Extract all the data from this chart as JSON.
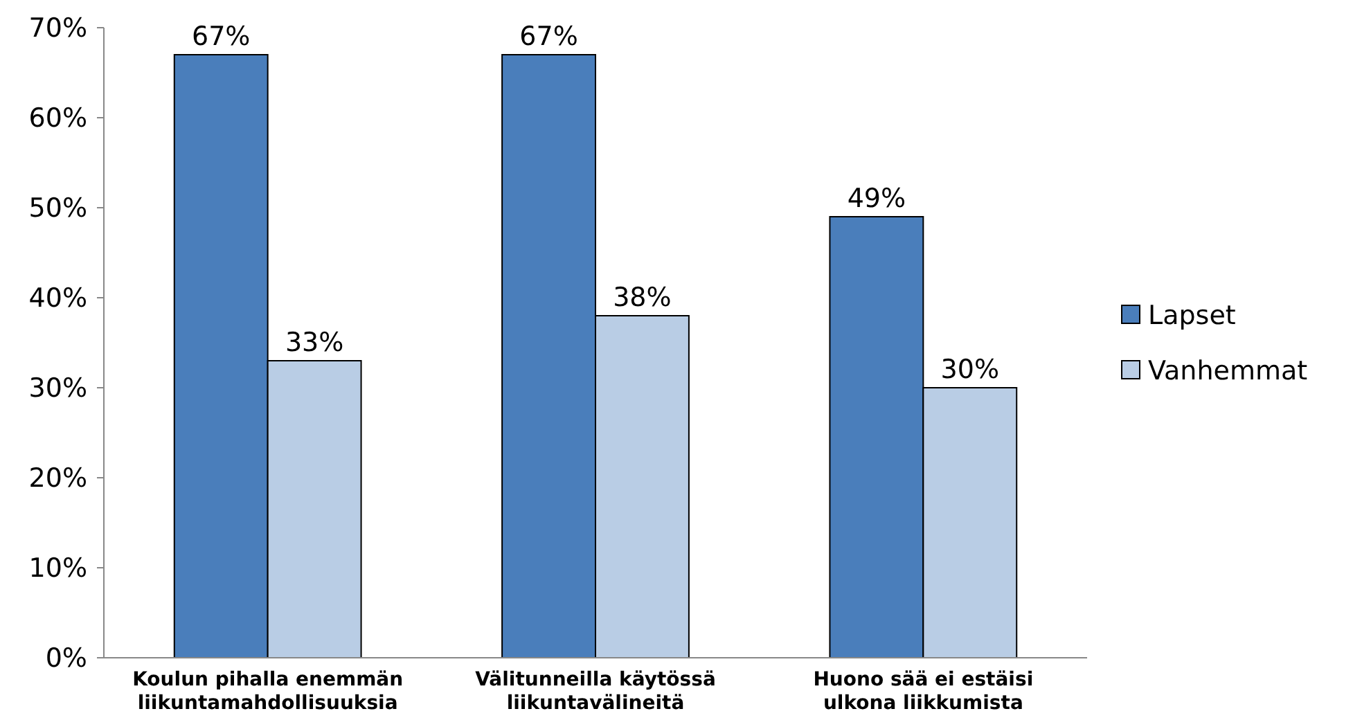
{
  "chart_data": {
    "type": "bar",
    "categories": [
      "Koulun pihalla enemmän liikuntamahdollisuuksia",
      "Välitunneilla käytössä liikuntavälineitä",
      "Huono sää ei estäisi ulkona liikkumista"
    ],
    "series": [
      {
        "name": "Lapset",
        "color": "#4a7ebb",
        "values": [
          67,
          67,
          49
        ],
        "value_labels": [
          "67%",
          "67%",
          "49%"
        ]
      },
      {
        "name": "Vanhemmat",
        "color": "#b9cde5",
        "values": [
          33,
          38,
          30
        ],
        "value_labels": [
          "33%",
          "38%",
          "30%"
        ]
      }
    ],
    "ylim": [
      0,
      70
    ],
    "yticks": [
      {
        "value": 0,
        "label": "0%"
      },
      {
        "value": 10,
        "label": "10%"
      },
      {
        "value": 20,
        "label": "20%"
      },
      {
        "value": 30,
        "label": "30%"
      },
      {
        "value": 40,
        "label": "40%"
      },
      {
        "value": 50,
        "label": "50%"
      },
      {
        "value": 60,
        "label": "60%"
      },
      {
        "value": 70,
        "label": "70%"
      }
    ],
    "grid": false,
    "legend": "right"
  }
}
